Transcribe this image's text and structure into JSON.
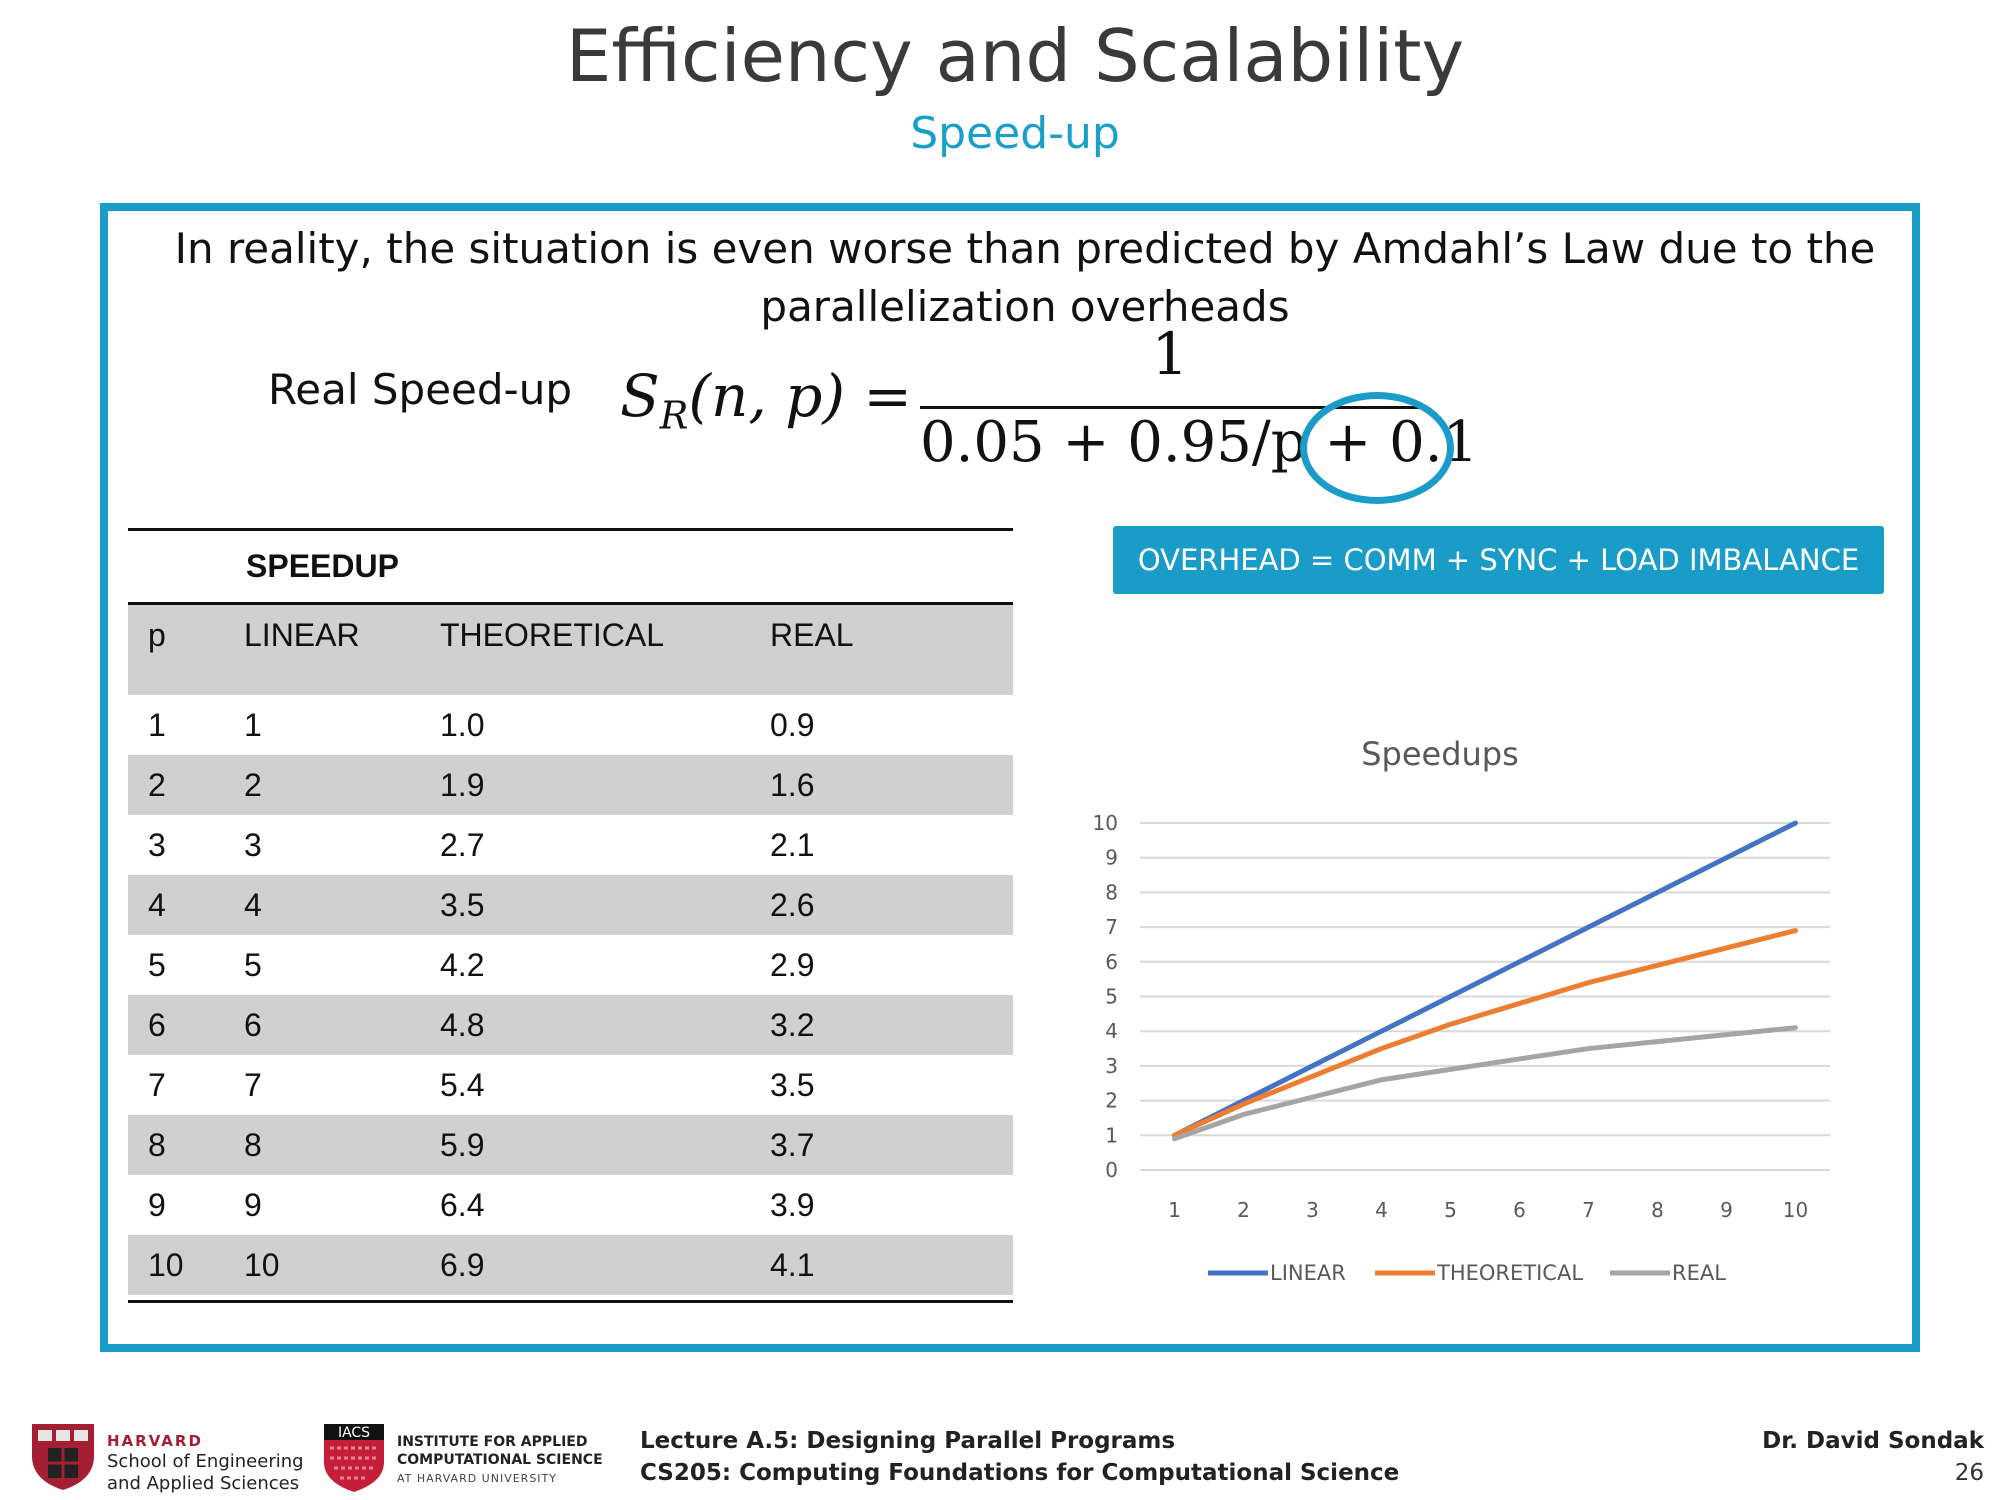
{
  "slide": {
    "title": "Efficiency and Scalability",
    "subtitle": "Speed-up",
    "intro": "In reality, the situation is even worse than predicted by Amdahl’s Law due to the parallelization overheads",
    "real_speedup_label": "Real Speed-up",
    "formula": {
      "lhs_main": "S",
      "lhs_sub": "R",
      "lhs_args": "(n, p) =",
      "numerator": "1",
      "denominator": "0.05 + 0.95/p + 0.1"
    },
    "overhead_label": "OVERHEAD = COMM + SYNC + LOAD IMBALANCE"
  },
  "table": {
    "title": "SPEEDUP",
    "headers": [
      "p",
      "LINEAR",
      "THEORETICAL",
      "REAL"
    ],
    "rows": [
      [
        "1",
        "1",
        "1.0",
        "0.9"
      ],
      [
        "2",
        "2",
        "1.9",
        "1.6"
      ],
      [
        "3",
        "3",
        "2.7",
        "2.1"
      ],
      [
        "4",
        "4",
        "3.5",
        "2.6"
      ],
      [
        "5",
        "5",
        "4.2",
        "2.9"
      ],
      [
        "6",
        "6",
        "4.8",
        "3.2"
      ],
      [
        "7",
        "7",
        "5.4",
        "3.5"
      ],
      [
        "8",
        "8",
        "5.9",
        "3.7"
      ],
      [
        "9",
        "9",
        "6.4",
        "3.9"
      ],
      [
        "10",
        "10",
        "6.9",
        "4.1"
      ]
    ]
  },
  "chart_data": {
    "type": "line",
    "title": "Speedups",
    "x": [
      1,
      2,
      3,
      4,
      5,
      6,
      7,
      8,
      9,
      10
    ],
    "ylim": [
      0,
      10
    ],
    "yticks": [
      0,
      1,
      2,
      3,
      4,
      5,
      6,
      7,
      8,
      9,
      10
    ],
    "grid": true,
    "legend_position": "bottom",
    "series": [
      {
        "name": "LINEAR",
        "color": "#4472c4",
        "values": [
          1,
          2,
          3,
          4,
          5,
          6,
          7,
          8,
          9,
          10
        ]
      },
      {
        "name": "THEORETICAL",
        "color": "#ed7d31",
        "values": [
          1.0,
          1.9,
          2.7,
          3.5,
          4.2,
          4.8,
          5.4,
          5.9,
          6.4,
          6.9
        ]
      },
      {
        "name": "REAL",
        "color": "#a5a5a5",
        "values": [
          0.9,
          1.6,
          2.1,
          2.6,
          2.9,
          3.2,
          3.5,
          3.7,
          3.9,
          4.1
        ]
      }
    ]
  },
  "footer": {
    "harvard_line1": "HARVARD",
    "harvard_line2": "School of Engineering",
    "harvard_line3": "and Applied Sciences",
    "iacs_badge": "IACS",
    "iacs_line1": "INSTITUTE FOR APPLIED",
    "iacs_line2": "COMPUTATIONAL SCIENCE",
    "iacs_line3": "AT HARVARD UNIVERSITY",
    "lecture": "Lecture A.5: Designing Parallel Programs",
    "course": "CS205: Computing Foundations for Computational Science",
    "author": "Dr. David Sondak",
    "page": "26"
  }
}
